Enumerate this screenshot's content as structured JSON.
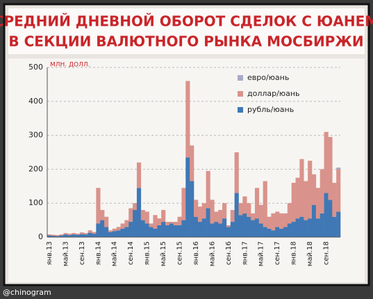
{
  "chart_data": {
    "type": "bar",
    "stacked": true,
    "title": "СРЕДНИЙ ДНЕВНОЙ ОБОРОТ СДЕЛОК С ЮАНЕМ",
    "subtitle": "В СЕКЦИИ ВАЛЮТНОГО РЫНКА МОСБИРЖИ",
    "y_label": "МЛН. ДОЛЛ.",
    "watermark": "@chinogram",
    "categories": [
      "янв.13",
      null,
      null,
      null,
      "май.13",
      null,
      null,
      null,
      "сен.13",
      null,
      null,
      null,
      "янв.14",
      null,
      null,
      null,
      "май.14",
      null,
      null,
      null,
      "сен.14",
      null,
      null,
      null,
      "янв.15",
      null,
      null,
      null,
      "май.15",
      null,
      null,
      null,
      "сен.15",
      null,
      null,
      null,
      "янв.16",
      null,
      null,
      null,
      "май.16",
      null,
      null,
      null,
      "сен.16",
      null,
      null,
      null,
      "янв.17",
      null,
      null,
      null,
      "май.17",
      null,
      null,
      null,
      "сен.17",
      null,
      null,
      null,
      "янв.18",
      null,
      null,
      null,
      "май.18",
      null,
      null,
      null,
      "сен.18",
      null,
      null,
      null
    ],
    "series": [
      {
        "name": "рубль/юань",
        "color": "#3f78b5",
        "values": [
          5,
          4,
          3,
          5,
          8,
          6,
          8,
          7,
          9,
          8,
          13,
          10,
          40,
          50,
          30,
          15,
          18,
          20,
          25,
          30,
          45,
          80,
          145,
          50,
          40,
          30,
          25,
          35,
          45,
          35,
          40,
          35,
          35,
          50,
          235,
          165,
          60,
          45,
          55,
          85,
          40,
          45,
          40,
          55,
          30,
          45,
          130,
          65,
          70,
          60,
          50,
          55,
          40,
          30,
          25,
          20,
          30,
          25,
          30,
          40,
          45,
          55,
          60,
          50,
          55,
          95,
          55,
          70,
          130,
          110,
          60,
          75
        ]
      },
      {
        "name": "доллар/юань",
        "color": "#d9938c",
        "values": [
          3,
          3,
          3,
          3,
          4,
          4,
          4,
          3,
          5,
          4,
          7,
          5,
          105,
          30,
          30,
          5,
          7,
          10,
          15,
          20,
          40,
          20,
          75,
          30,
          35,
          10,
          40,
          20,
          35,
          10,
          5,
          10,
          25,
          95,
          225,
          105,
          50,
          45,
          45,
          110,
          70,
          30,
          40,
          45,
          5,
          35,
          120,
          35,
          50,
          40,
          20,
          90,
          55,
          135,
          35,
          50,
          45,
          45,
          40,
          60,
          115,
          120,
          170,
          115,
          170,
          90,
          90,
          130,
          180,
          185,
          100,
          125
        ]
      },
      {
        "name": "евро/юань",
        "color": "#a9a9c8",
        "values": [
          0,
          0,
          0,
          0,
          0,
          0,
          0,
          0,
          0,
          0,
          0,
          0,
          0,
          0,
          0,
          0,
          0,
          0,
          0,
          0,
          0,
          0,
          0,
          0,
          0,
          0,
          0,
          0,
          0,
          0,
          0,
          0,
          0,
          0,
          0,
          0,
          0,
          0,
          0,
          0,
          0,
          0,
          0,
          0,
          0,
          0,
          0,
          0,
          0,
          0,
          0,
          0,
          0,
          0,
          0,
          0,
          0,
          0,
          0,
          0,
          0,
          0,
          0,
          0,
          0,
          0,
          0,
          0,
          0,
          0,
          0,
          5
        ]
      }
    ],
    "ylim": [
      0,
      500
    ],
    "yticks": [
      0,
      100,
      200,
      300,
      400,
      500
    ],
    "grid": true,
    "legend": "top-right"
  }
}
